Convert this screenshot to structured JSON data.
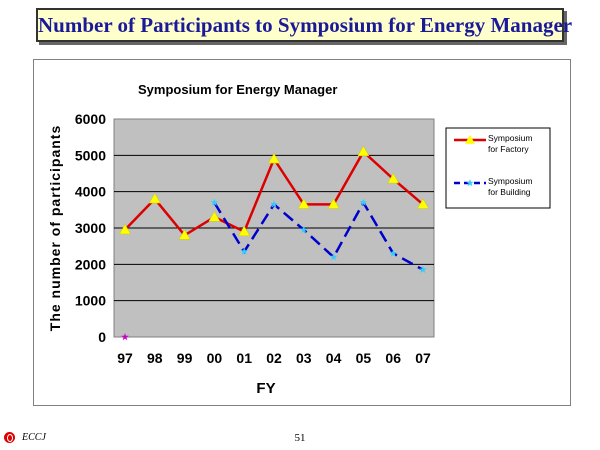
{
  "slide": {
    "title": "Number of Participants to Symposium for Energy Manager",
    "page_number": "51",
    "org": "ECCJ"
  },
  "chart_data": {
    "type": "line",
    "title": "Symposium for Energy Manager",
    "xlabel": "FY",
    "ylabel": "The number of participants",
    "categories": [
      "97",
      "98",
      "99",
      "00",
      "01",
      "02",
      "03",
      "04",
      "05",
      "06",
      "07"
    ],
    "ylim": [
      0,
      6000
    ],
    "yticks": [
      0,
      1000,
      2000,
      3000,
      4000,
      5000,
      6000
    ],
    "grid": true,
    "legend_position": "right",
    "series": [
      {
        "name": "Symposium for Factory",
        "values": [
          2950,
          3800,
          2800,
          3300,
          2900,
          4900,
          3650,
          3650,
          5100,
          4350,
          3650
        ],
        "color": "#dd0000",
        "line_style": "solid",
        "marker": "triangle",
        "marker_color": "#ffff00"
      },
      {
        "name": "Symposium for Building",
        "values": [
          null,
          null,
          null,
          3700,
          2350,
          3650,
          2950,
          2200,
          3700,
          2300,
          1850
        ],
        "color": "#0000cc",
        "line_style": "dashed",
        "marker": "star",
        "marker_color": "#33ccff"
      }
    ],
    "annotations": [
      {
        "category": "97",
        "value": 0,
        "marker": "star",
        "color": "#cc00cc"
      }
    ]
  }
}
